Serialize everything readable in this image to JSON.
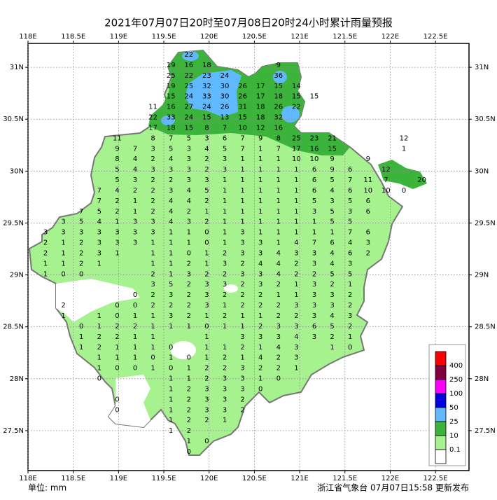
{
  "title": "2021年07月07日20时至07月08日20时24小时累计雨量预报",
  "unit_label": "单位: mm",
  "issuer": "浙江省气象台 07月07日15:58 更新发布",
  "map": {
    "lonlim": [
      118,
      122.87
    ],
    "latlim": [
      27.115,
      31.23
    ],
    "lon_ticks": [
      {
        "value": 118,
        "label": "118E"
      },
      {
        "value": 118.5,
        "label": "118.5E"
      },
      {
        "value": 119,
        "label": "119E"
      },
      {
        "value": 119.5,
        "label": "119.5E"
      },
      {
        "value": 120,
        "label": "120E"
      },
      {
        "value": 120.5,
        "label": "120.5E"
      },
      {
        "value": 121,
        "label": "121E"
      },
      {
        "value": 121.5,
        "label": "121.5E"
      },
      {
        "value": 122,
        "label": "122E"
      },
      {
        "value": 122.5,
        "label": "122.5E"
      }
    ],
    "lat_ticks": [
      {
        "value": 31,
        "label": "31N"
      },
      {
        "value": 30.5,
        "label": "30.5N"
      },
      {
        "value": 30,
        "label": "30N"
      },
      {
        "value": 29.5,
        "label": "29.5N"
      },
      {
        "value": 29,
        "label": "29N"
      },
      {
        "value": 28.5,
        "label": "28.5N"
      },
      {
        "value": 28,
        "label": "28N"
      },
      {
        "value": 27.5,
        "label": "27.5N"
      }
    ],
    "grid": true
  },
  "legend": {
    "colors": [
      "#fa0000",
      "#800040",
      "#fa00fa",
      "#0000e0",
      "#60b8ff",
      "#3cb43c",
      "#a6f28f",
      "#ffffff"
    ],
    "labels": [
      "400",
      "250",
      "100",
      "50",
      "25",
      "10",
      "0.1"
    ]
  },
  "stations": [
    [
      null,
      null,
      null,
      null,
      null,
      null,
      null,
      null,
      22,
      null,
      null,
      null,
      null,
      null,
      null,
      null,
      null,
      null,
      null,
      null,
      null,
      null
    ],
    [
      null,
      null,
      null,
      null,
      null,
      null,
      null,
      19,
      16,
      18,
      null,
      null,
      null,
      9,
      null,
      null,
      null,
      null,
      null,
      null,
      null,
      null
    ],
    [
      null,
      null,
      null,
      null,
      null,
      null,
      null,
      25,
      22,
      23,
      24,
      null,
      null,
      36,
      null,
      null,
      null,
      null,
      null,
      null,
      null,
      null
    ],
    [
      null,
      null,
      null,
      null,
      null,
      null,
      null,
      19,
      25,
      32,
      30,
      26,
      17,
      15,
      14,
      null,
      null,
      null,
      null,
      null,
      null,
      null
    ],
    [
      null,
      null,
      null,
      null,
      null,
      null,
      null,
      15,
      24,
      33,
      30,
      26,
      17,
      18,
      15,
      15,
      null,
      null,
      null,
      null,
      null,
      null
    ],
    [
      null,
      null,
      null,
      null,
      null,
      null,
      11,
      16,
      27,
      24,
      26,
      31,
      18,
      26,
      22,
      null,
      null,
      null,
      null,
      null,
      null,
      null
    ],
    [
      null,
      null,
      null,
      null,
      null,
      null,
      22,
      33,
      24,
      15,
      13,
      15,
      18,
      32,
      null,
      null,
      null,
      null,
      null,
      null,
      null,
      null
    ],
    [
      null,
      null,
      null,
      null,
      null,
      null,
      17,
      18,
      15,
      8,
      7,
      10,
      12,
      16,
      null,
      null,
      null,
      null,
      null,
      null,
      null,
      null
    ],
    [
      null,
      null,
      null,
      null,
      11,
      null,
      8,
      7,
      5,
      3,
      6,
      7,
      9,
      8,
      25,
      23,
      21,
      null,
      null,
      null,
      12,
      null
    ],
    [
      null,
      null,
      null,
      null,
      9,
      7,
      3,
      5,
      3,
      4,
      5,
      7,
      1,
      7,
      17,
      16,
      15,
      null,
      null,
      null,
      1,
      null
    ],
    [
      null,
      null,
      null,
      null,
      8,
      4,
      2,
      4,
      3,
      2,
      3,
      1,
      1,
      1,
      10,
      10,
      9,
      null,
      9,
      null,
      null,
      null
    ],
    [
      null,
      null,
      null,
      null,
      5,
      4,
      3,
      3,
      3,
      2,
      3,
      1,
      1,
      1,
      1,
      6,
      9,
      6,
      null,
      12,
      null,
      null
    ],
    [
      null,
      null,
      null,
      null,
      5,
      3,
      2,
      2,
      3,
      3,
      1,
      1,
      1,
      1,
      1,
      6,
      5,
      7,
      11,
      7,
      null,
      20
    ],
    [
      null,
      null,
      null,
      7,
      4,
      2,
      2,
      3,
      4,
      5,
      1,
      1,
      1,
      1,
      1,
      6,
      4,
      6,
      10,
      10,
      0,
      null
    ],
    [
      null,
      null,
      null,
      7,
      2,
      1,
      2,
      4,
      4,
      2,
      1,
      1,
      1,
      1,
      1,
      5,
      3,
      5,
      6,
      null,
      null,
      null
    ],
    [
      null,
      null,
      7,
      5,
      2,
      1,
      2,
      4,
      2,
      1,
      1,
      1,
      1,
      1,
      1,
      3,
      5,
      3,
      6,
      null,
      null,
      null
    ],
    [
      null,
      3,
      5,
      4,
      1,
      3,
      3,
      4,
      3,
      2,
      1,
      1,
      1,
      1,
      1,
      1,
      5,
      5,
      null,
      null,
      null,
      null
    ],
    [
      3,
      3,
      3,
      3,
      3,
      3,
      3,
      1,
      1,
      0,
      1,
      3,
      1,
      1,
      1,
      1,
      1,
      7,
      6,
      null,
      null,
      null
    ],
    [
      2,
      1,
      2,
      3,
      3,
      3,
      1,
      1,
      1,
      0,
      1,
      3,
      3,
      1,
      4,
      7,
      6,
      4,
      3,
      null,
      null,
      null
    ],
    [
      2,
      1,
      2,
      3,
      1,
      null,
      1,
      1,
      0,
      1,
      2,
      3,
      3,
      4,
      3,
      3,
      4,
      6,
      2,
      null,
      null,
      null
    ],
    [
      1,
      1,
      2,
      1,
      null,
      null,
      1,
      1,
      2,
      1,
      3,
      2,
      4,
      4,
      2,
      3,
      4,
      3,
      null,
      null,
      null,
      null
    ],
    [
      1,
      0,
      0,
      null,
      null,
      null,
      2,
      1,
      3,
      2,
      2,
      3,
      3,
      4,
      2,
      2,
      5,
      5,
      null,
      null,
      null,
      null
    ],
    [
      null,
      null,
      null,
      null,
      null,
      null,
      3,
      5,
      2,
      3,
      3,
      2,
      3,
      2,
      1,
      3,
      2,
      1,
      null,
      null,
      null,
      null
    ],
    [
      null,
      null,
      null,
      null,
      null,
      0,
      2,
      3,
      2,
      3,
      2,
      2,
      2,
      1,
      1,
      3,
      3,
      2,
      null,
      null,
      null,
      null
    ],
    [
      null,
      2,
      null,
      null,
      0,
      0,
      2,
      2,
      2,
      3,
      1,
      2,
      2,
      2,
      3,
      3,
      3,
      2,
      null,
      null,
      null,
      null
    ],
    [
      null,
      1,
      null,
      1,
      0,
      1,
      1,
      3,
      2,
      1,
      2,
      1,
      1,
      2,
      2,
      3,
      4,
      3,
      null,
      null,
      null,
      null
    ],
    [
      null,
      null,
      0,
      1,
      2,
      2,
      1,
      1,
      1,
      0,
      1,
      1,
      2,
      3,
      3,
      6,
      5,
      2,
      null,
      null,
      null,
      null
    ],
    [
      null,
      null,
      1,
      2,
      2,
      1,
      1,
      null,
      null,
      1,
      null,
      3,
      3,
      3,
      4,
      3,
      2,
      1,
      null,
      null,
      null,
      null
    ],
    [
      null,
      null,
      1,
      2,
      1,
      1,
      1,
      0,
      null,
      1,
      1,
      2,
      1,
      4,
      3,
      null,
      1,
      0,
      null,
      null,
      null,
      null
    ],
    [
      null,
      null,
      null,
      1,
      1,
      1,
      0,
      1,
      0,
      1,
      2,
      1,
      4,
      2,
      3,
      null,
      null,
      null,
      null,
      null,
      null,
      null
    ],
    [
      null,
      null,
      null,
      1,
      0,
      0,
      1,
      0,
      1,
      2,
      2,
      3,
      2,
      2,
      1,
      null,
      null,
      null,
      null,
      null,
      null,
      null
    ],
    [
      null,
      null,
      null,
      0,
      null,
      null,
      null,
      1,
      1,
      2,
      3,
      3,
      1,
      0,
      null,
      null,
      null,
      null,
      null,
      null,
      null,
      null
    ],
    [
      null,
      null,
      null,
      null,
      null,
      null,
      null,
      1,
      2,
      3,
      3,
      3,
      0,
      null,
      null,
      null,
      null,
      null,
      null,
      null,
      null,
      null
    ],
    [
      null,
      null,
      null,
      null,
      0,
      null,
      null,
      1,
      2,
      3,
      3,
      2,
      null,
      null,
      null,
      null,
      null,
      null,
      null,
      null,
      null,
      null
    ],
    [
      null,
      null,
      null,
      null,
      0,
      null,
      null,
      1,
      2,
      3,
      3,
      2,
      null,
      null,
      null,
      null,
      null,
      null,
      null,
      null,
      null,
      null
    ],
    [
      null,
      null,
      null,
      null,
      null,
      null,
      null,
      1,
      2,
      2,
      1,
      null,
      null,
      null,
      null,
      null,
      null,
      null,
      null,
      null,
      null,
      null
    ],
    [
      null,
      null,
      null,
      null,
      null,
      null,
      null,
      1,
      2,
      null,
      null,
      null,
      null,
      null,
      null,
      null,
      null,
      null,
      null,
      null,
      null,
      null
    ],
    [
      null,
      null,
      null,
      null,
      null,
      null,
      null,
      null,
      1,
      0,
      null,
      null,
      null,
      null,
      null,
      null,
      null,
      null,
      null,
      null,
      null,
      null
    ],
    [
      null,
      null,
      null,
      null,
      null,
      null,
      null,
      null,
      0,
      null,
      null,
      null,
      null,
      null,
      null,
      null,
      null,
      null,
      null,
      null,
      null,
      null
    ]
  ]
}
